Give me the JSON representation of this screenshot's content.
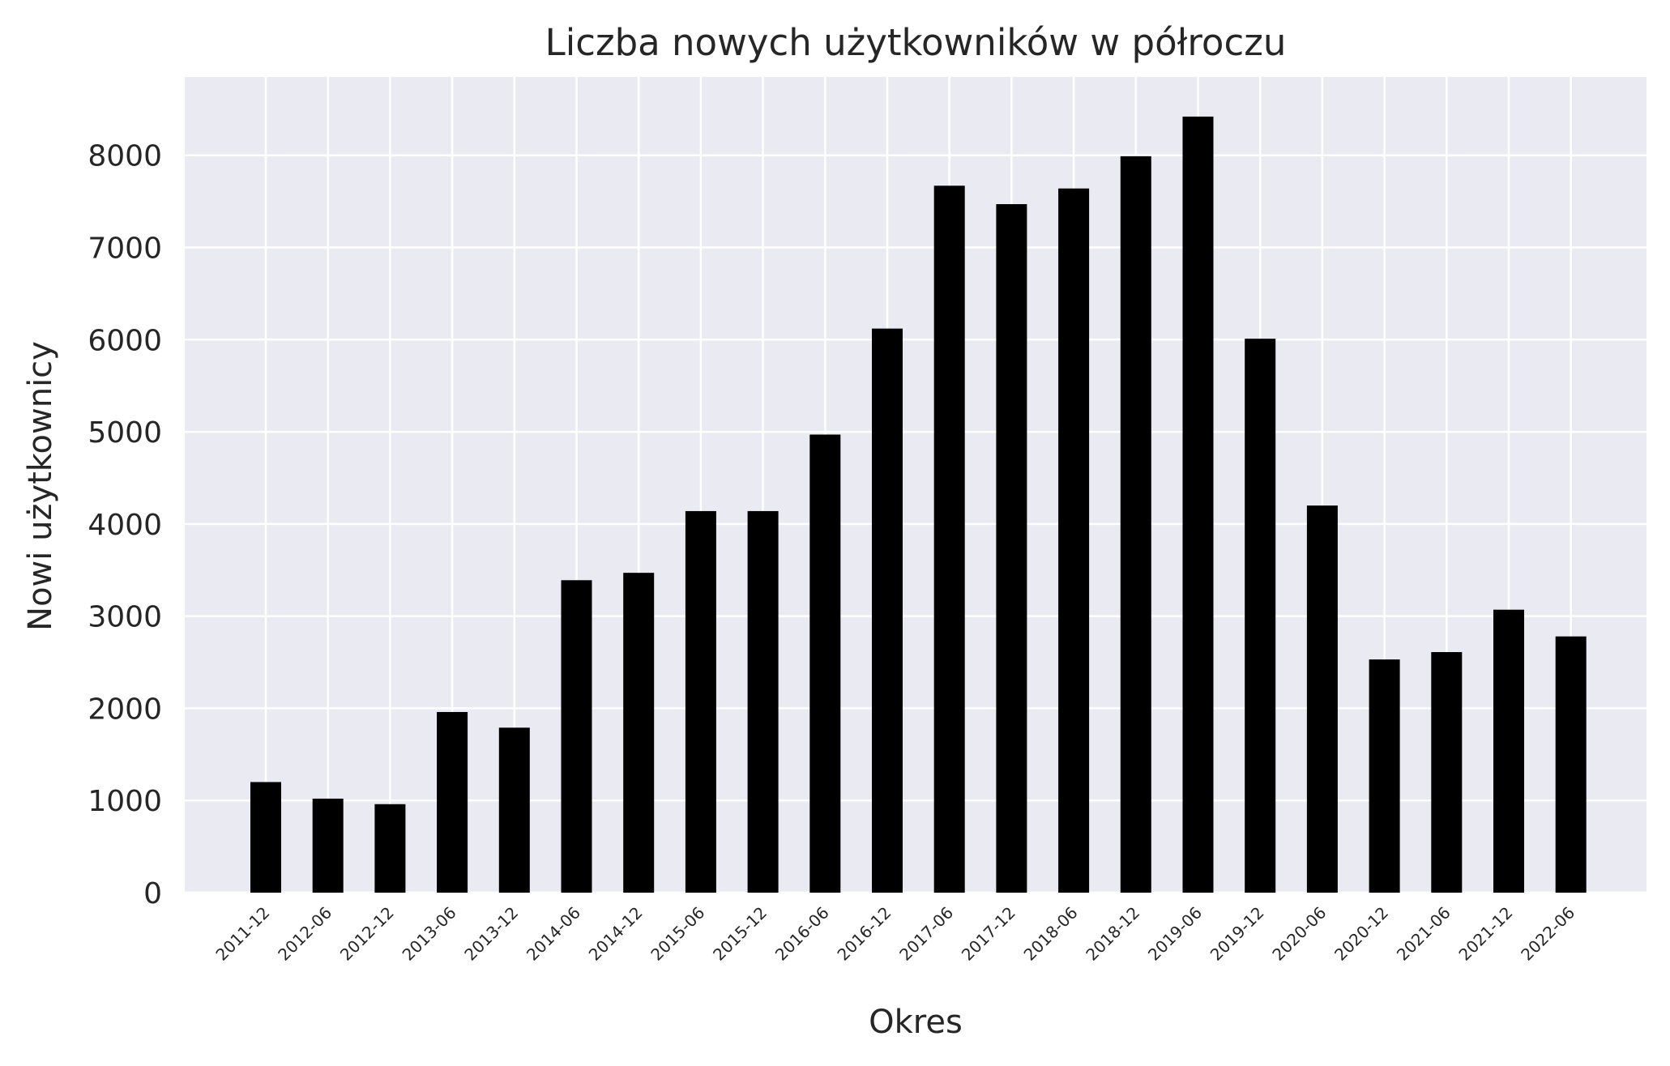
{
  "chart_data": {
    "type": "bar",
    "title": "Liczba nowych użytkowników w półroczu",
    "xlabel": "Okres",
    "ylabel": "Nowi użytkownicy",
    "categories": [
      "2011-12",
      "2012-06",
      "2012-12",
      "2013-06",
      "2013-12",
      "2014-06",
      "2014-12",
      "2015-06",
      "2015-12",
      "2016-06",
      "2016-12",
      "2017-06",
      "2017-12",
      "2018-06",
      "2018-12",
      "2019-06",
      "2019-12",
      "2020-06",
      "2020-12",
      "2021-06",
      "2021-12",
      "2022-06"
    ],
    "values": [
      1200,
      1020,
      960,
      1960,
      1790,
      3390,
      3470,
      4140,
      4140,
      4970,
      6120,
      7670,
      7470,
      7640,
      7990,
      8420,
      6010,
      4200,
      2530,
      2610,
      3070,
      2780
    ],
    "ylim": [
      0,
      8850
    ],
    "yticks": [
      0,
      1000,
      2000,
      3000,
      4000,
      5000,
      6000,
      7000,
      8000
    ],
    "grid": true,
    "legend": "none",
    "colors": {
      "background": "#EAEAF2",
      "bar": "#000000",
      "grid": "#FFFFFF",
      "text": "#262626"
    }
  }
}
